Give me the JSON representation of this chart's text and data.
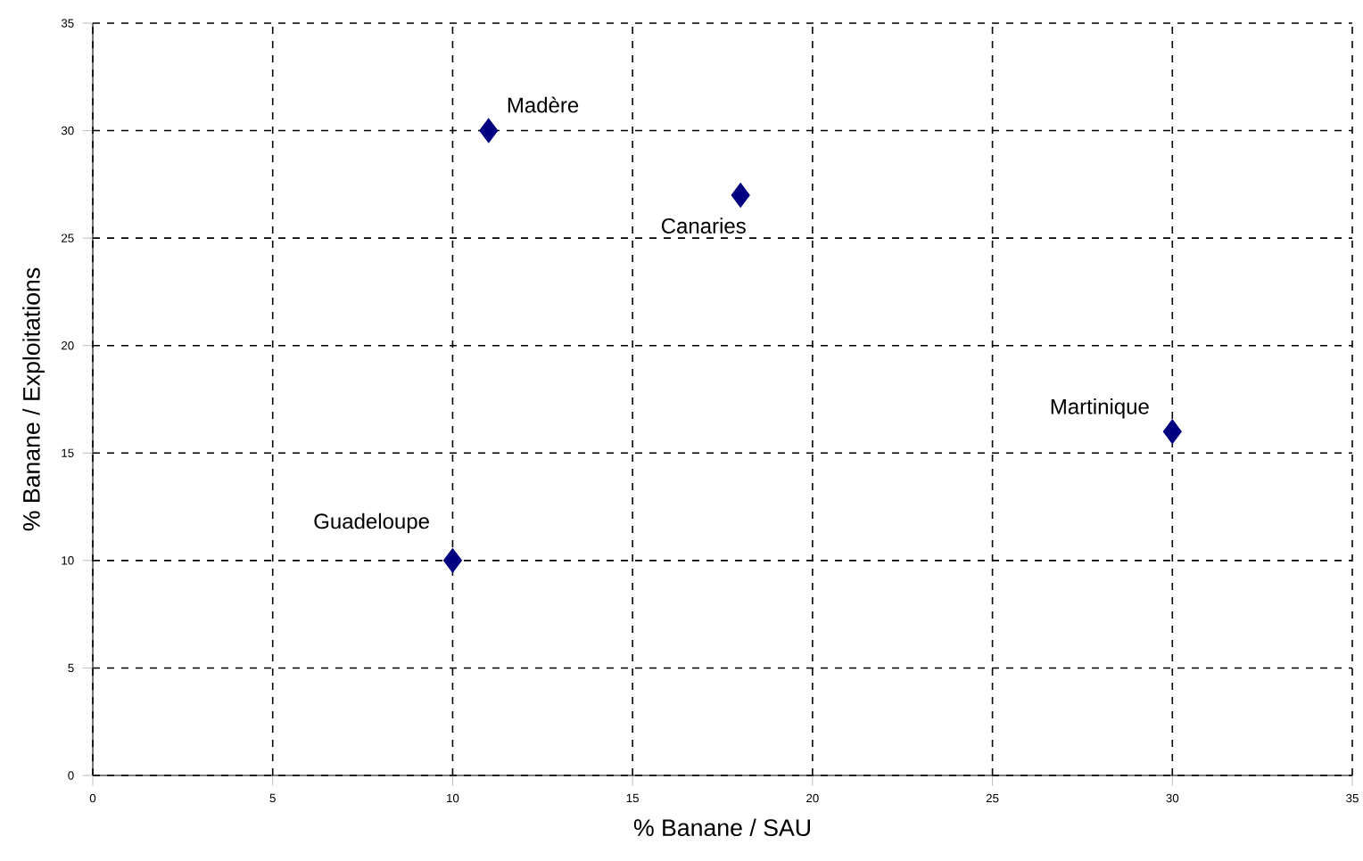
{
  "chart_data": {
    "type": "scatter",
    "xlabel": "% Banane / SAU",
    "ylabel": "% Banane / Exploitations",
    "x": [
      11,
      18,
      30,
      10
    ],
    "values": [
      30,
      27,
      16,
      10
    ],
    "color": "#000080",
    "marker": "diamond",
    "grid": true,
    "xlim": [
      0,
      35
    ],
    "xticks": [
      0,
      5,
      10,
      15,
      20,
      25,
      30,
      35
    ],
    "ylim": [
      0,
      35
    ],
    "yticks": [
      0,
      5,
      10,
      15,
      20,
      25,
      30,
      35
    ],
    "annotations": [
      {
        "text": "Madère",
        "x": 11,
        "y": 30
      },
      {
        "text": "Canaries",
        "x": 18,
        "y": 27
      },
      {
        "text": "Martinique",
        "x": 30,
        "y": 16
      },
      {
        "text": "Guadeloupe",
        "x": 10,
        "y": 10
      }
    ]
  }
}
